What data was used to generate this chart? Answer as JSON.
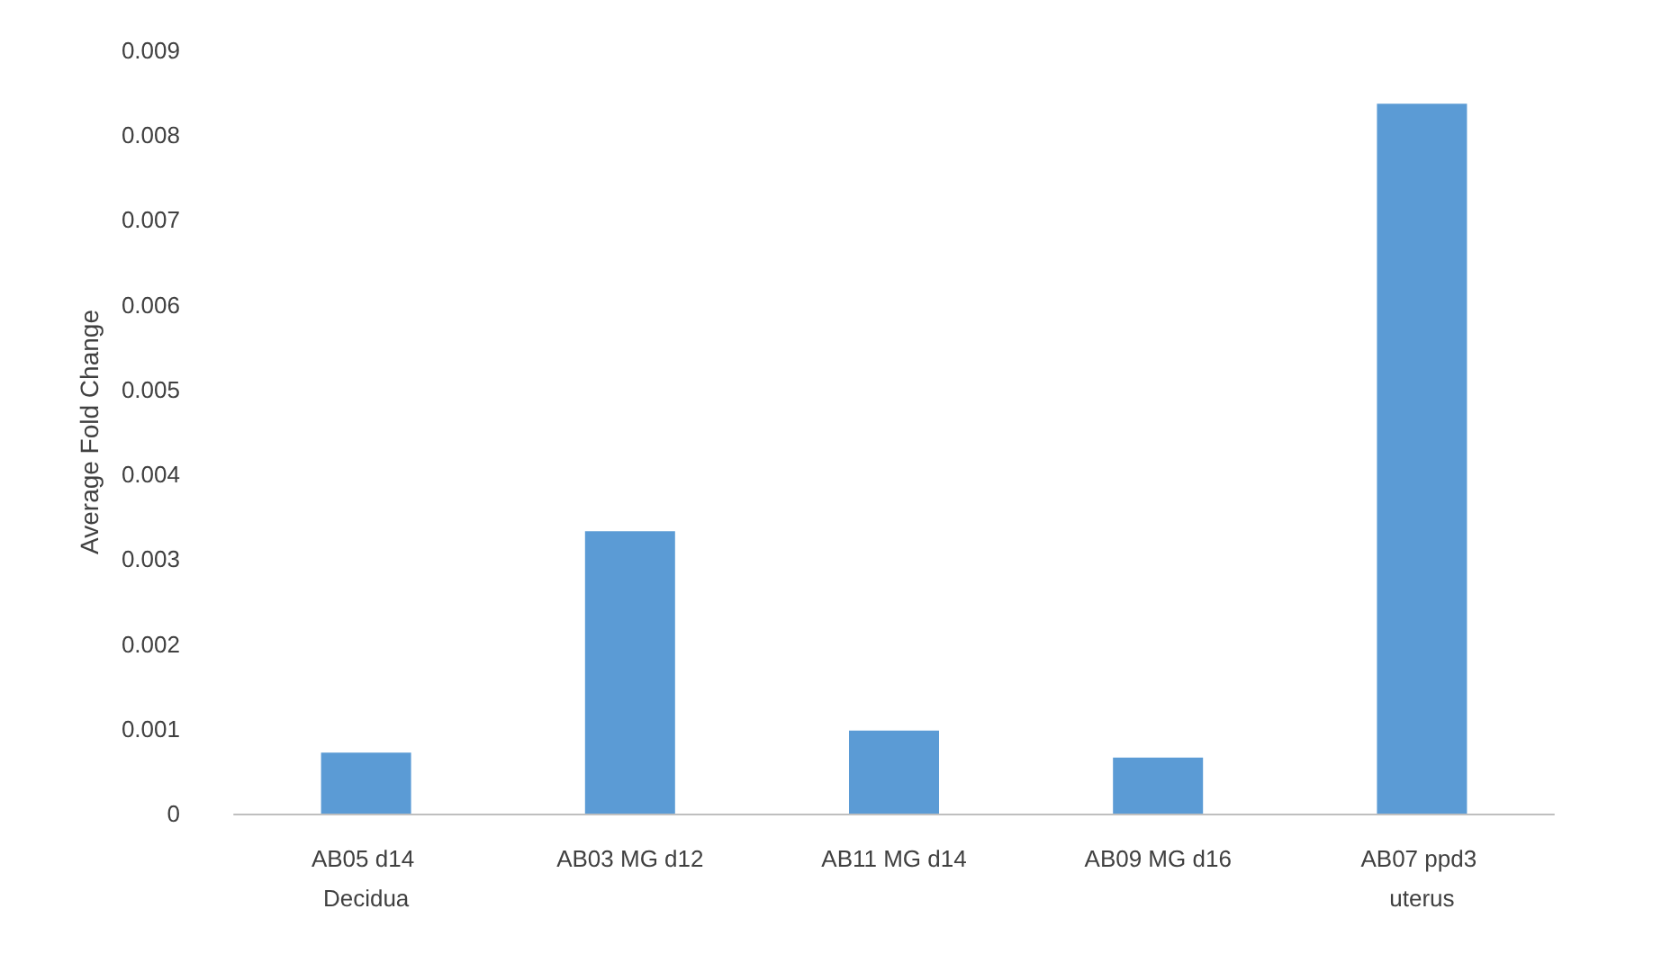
{
  "chart_data": {
    "type": "bar",
    "ylabel": "Average Fold Change",
    "categories": [
      "AB05 d14 Decidua",
      "AB03 MG d12",
      "AB11 MG d14",
      "AB09 MG d16",
      "AB07 ppd3 uterus"
    ],
    "values": [
      0.00072,
      0.00333,
      0.00098,
      0.00066,
      0.00837
    ],
    "color": "#5b9bd5",
    "ylim": [
      0,
      0.009
    ],
    "yticks": [
      0,
      0.001,
      0.002,
      0.003,
      0.004,
      0.005,
      0.006,
      0.007,
      0.008,
      0.009
    ],
    "grid": false
  }
}
